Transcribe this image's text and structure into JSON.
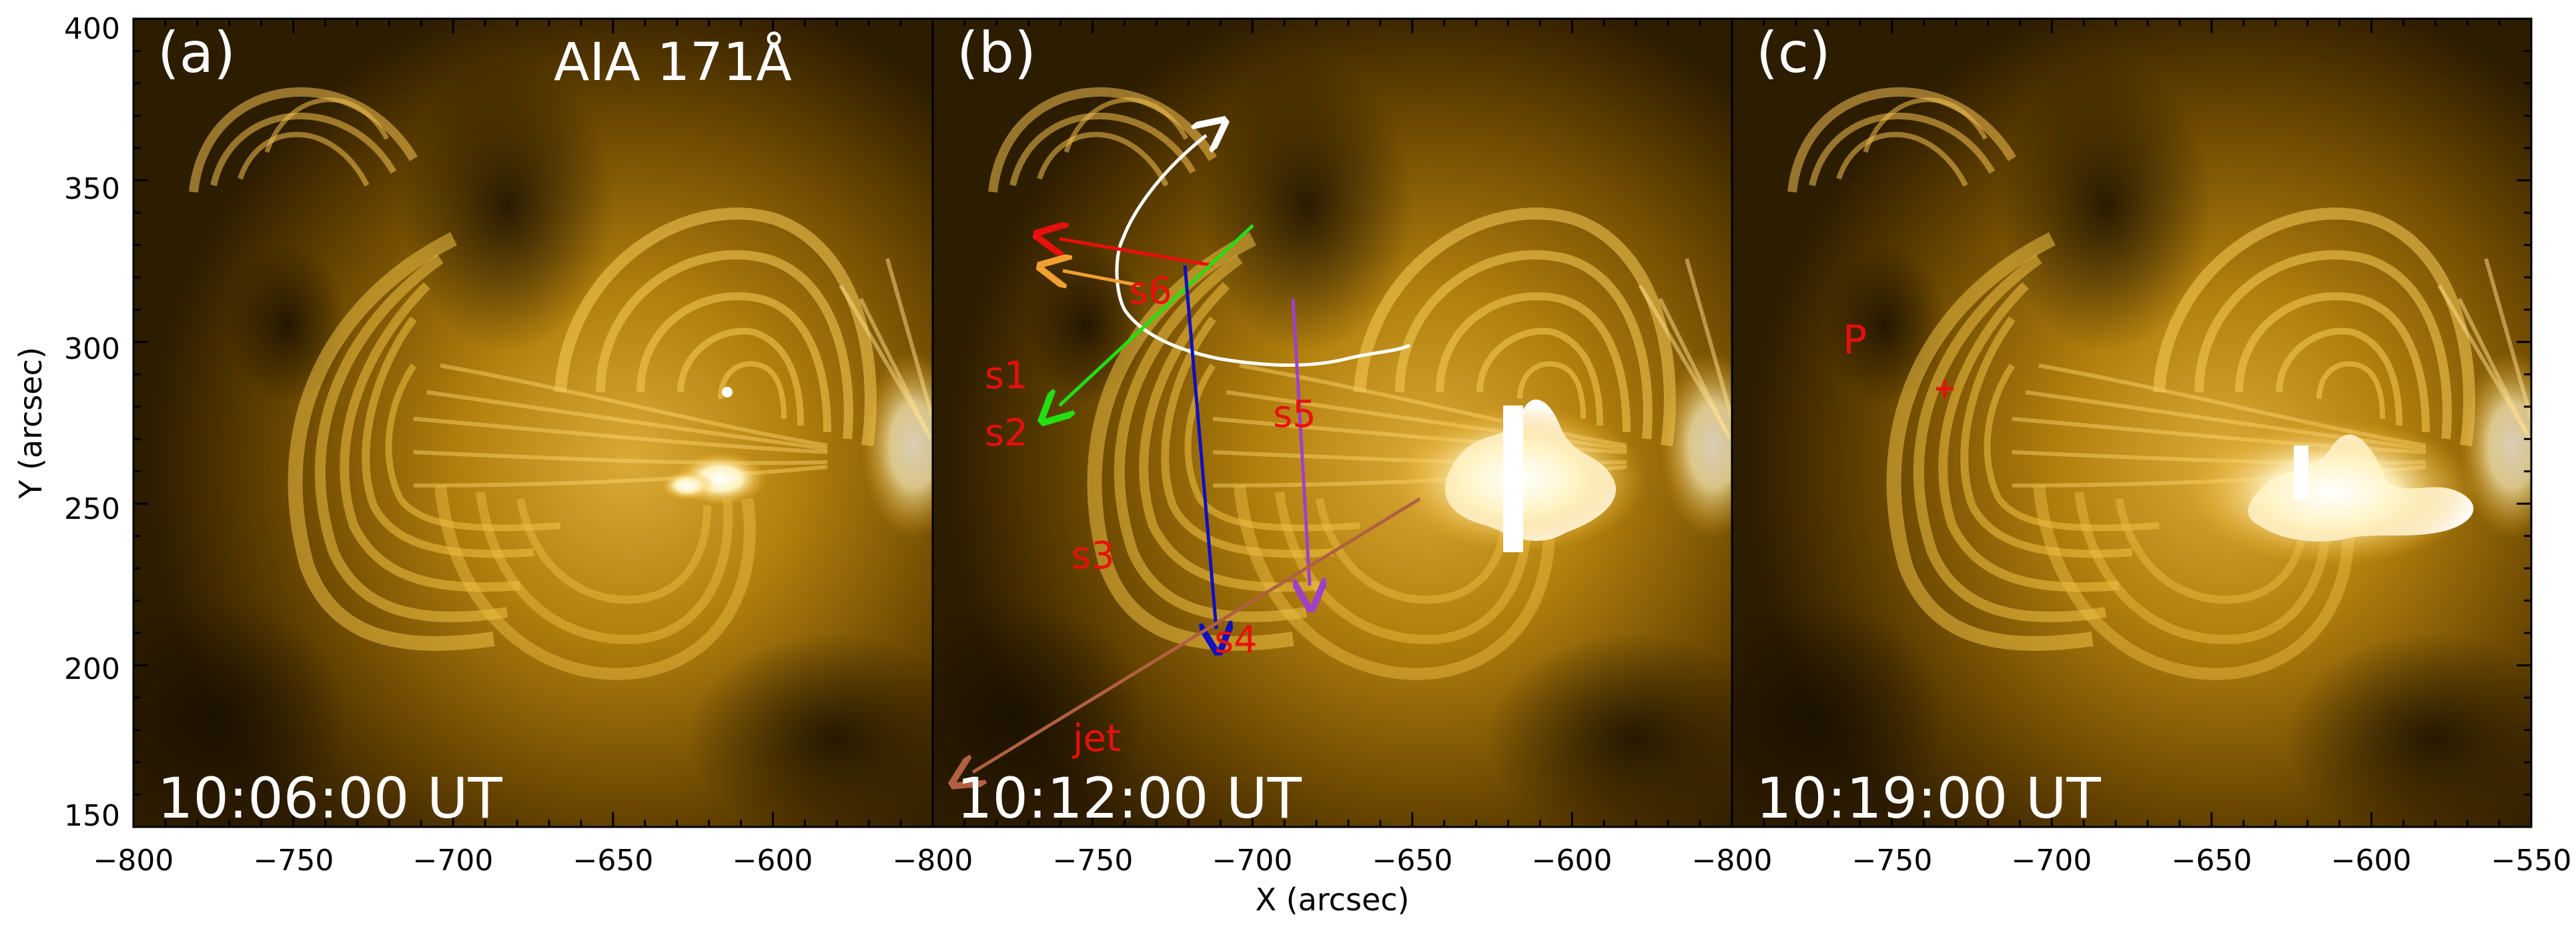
{
  "figure": {
    "instrument_label": "AIA 171Å",
    "x_axis_title": "X (arcsec)",
    "y_axis_title": "Y (arcsec)",
    "x_ticks": [
      "−800",
      "−750",
      "−700",
      "−650",
      "−600",
      "−550"
    ],
    "x_ticks_last_panel_end": "−550",
    "y_ticks": [
      "400",
      "350",
      "300",
      "250",
      "200",
      "150"
    ],
    "colors": {
      "sun_dark": "#2a1a00",
      "sun_mid": "#9a6a00",
      "sun_bright": "#f0b020",
      "sun_hot": "#ffffff",
      "label_white": "#ffffff",
      "annotation_red": "#e8100c",
      "s1_color": "#e8100c",
      "s2_color": "#f0a030",
      "s3_color": "#22e010",
      "s4_color": "#1010c0",
      "s5_color": "#a040c8",
      "s6_color": "#ffffff",
      "jet_color": "#b06040"
    }
  },
  "panels": [
    {
      "label": "(a)",
      "time": "10:06:00 UT"
    },
    {
      "label": "(b)",
      "time": "10:12:00 UT",
      "slits": {
        "s1": "s1",
        "s2": "s2",
        "s3": "s3",
        "s4": "s4",
        "s5": "s5",
        "s6": "s6",
        "jet": "jet"
      }
    },
    {
      "label": "(c)",
      "time": "10:19:00 UT",
      "point_label": "P"
    }
  ]
}
